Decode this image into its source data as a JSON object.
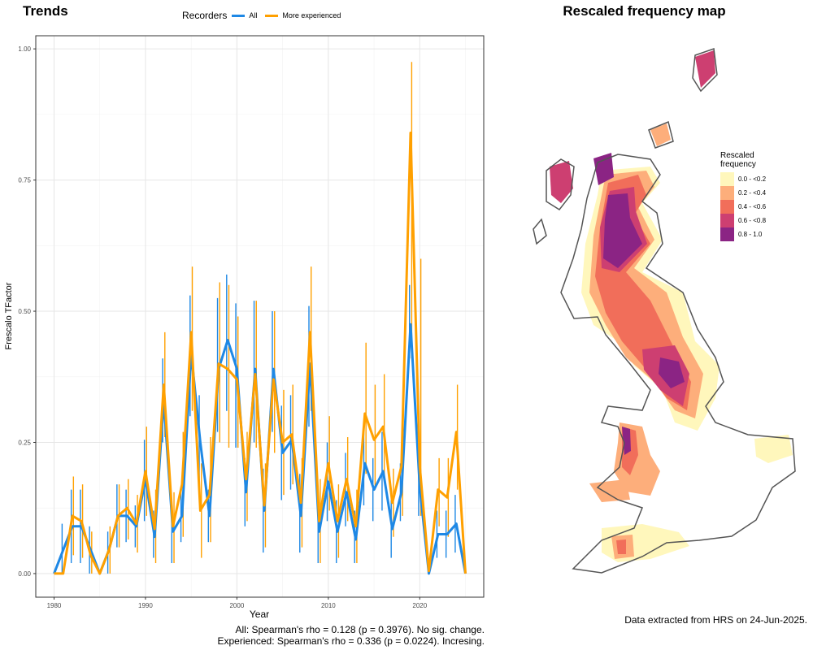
{
  "left_title": "Trends",
  "right_title": "Rescaled frequency map",
  "legend": {
    "title": "Recorders",
    "items": [
      {
        "label": "All",
        "color": "#1e88e5"
      },
      {
        "label": "More experienced",
        "color": "#ffa000"
      }
    ]
  },
  "caption": {
    "line1": "All: Spearman's rho = 0.128 (p = 0.3976). No sig. change.",
    "line2": "Experienced: Spearman's rho = 0.336 (p = 0.0224). Incresing."
  },
  "footnote": "Data extracted from HRS on 24-Jun-2025.",
  "map_legend": {
    "title_line1": "Rescaled",
    "title_line2": "frequency",
    "classes": [
      {
        "label": "0.0 - <0.2",
        "color": "#fff7bc"
      },
      {
        "label": "0.2 - <0.4",
        "color": "#fdae7b"
      },
      {
        "label": "0.4 - <0.6",
        "color": "#f16e5a"
      },
      {
        "label": "0.6 - <0.8",
        "color": "#cd3f71"
      },
      {
        "label": "0.8 - 1.0",
        "color": "#8b2484"
      }
    ]
  },
  "chart_data": {
    "type": "line",
    "xlabel": "Year",
    "ylabel": "Frescalo TFactor",
    "xlim": [
      1978,
      2027
    ],
    "ylim": [
      -0.045,
      1.025
    ],
    "xticks": [
      1980,
      1990,
      2000,
      2010,
      2020
    ],
    "yticks": [
      0.0,
      0.25,
      0.5,
      0.75,
      1.0
    ],
    "ytick_labels": [
      "0.00",
      "0.25",
      "0.50",
      "0.75",
      "1.00"
    ],
    "grid": true,
    "x": [
      1980,
      1981,
      1982,
      1983,
      1984,
      1985,
      1986,
      1987,
      1988,
      1989,
      1990,
      1991,
      1992,
      1993,
      1994,
      1995,
      1996,
      1997,
      1998,
      1999,
      2000,
      2001,
      2002,
      2003,
      2004,
      2005,
      2006,
      2007,
      2008,
      2009,
      2010,
      2011,
      2012,
      2013,
      2014,
      2015,
      2016,
      2017,
      2018,
      2019,
      2020,
      2021,
      2022,
      2023,
      2024,
      2025
    ],
    "series": [
      {
        "name": "All",
        "color": "#1e88e5",
        "values": [
          0.0,
          0.045,
          0.09,
          0.09,
          0.045,
          0.0,
          0.045,
          0.11,
          0.11,
          0.09,
          0.18,
          0.07,
          0.33,
          0.08,
          0.11,
          0.42,
          0.25,
          0.11,
          0.39,
          0.445,
          0.39,
          0.155,
          0.39,
          0.12,
          0.39,
          0.23,
          0.255,
          0.11,
          0.4,
          0.08,
          0.175,
          0.08,
          0.155,
          0.065,
          0.21,
          0.16,
          0.195,
          0.085,
          0.155,
          0.475,
          0.165,
          0.0,
          0.075,
          0.075,
          0.095,
          0.0
        ],
        "err_low": [
          0.0,
          0.0,
          0.02,
          0.02,
          0.0,
          0.0,
          0.0,
          0.05,
          0.06,
          0.05,
          0.1,
          0.03,
          0.25,
          0.02,
          0.06,
          0.3,
          0.17,
          0.06,
          0.27,
          0.31,
          0.24,
          0.09,
          0.25,
          0.04,
          0.27,
          0.14,
          0.16,
          0.04,
          0.28,
          0.02,
          0.1,
          0.02,
          0.09,
          0.02,
          0.13,
          0.1,
          0.12,
          0.03,
          0.1,
          0.41,
          0.11,
          0.0,
          0.03,
          0.03,
          0.04,
          0.0
        ],
        "err_high": [
          0.0,
          0.095,
          0.16,
          0.16,
          0.09,
          0.0,
          0.08,
          0.17,
          0.16,
          0.13,
          0.255,
          0.12,
          0.41,
          0.13,
          0.16,
          0.53,
          0.34,
          0.16,
          0.525,
          0.57,
          0.515,
          0.22,
          0.52,
          0.2,
          0.5,
          0.32,
          0.34,
          0.19,
          0.51,
          0.15,
          0.25,
          0.14,
          0.23,
          0.12,
          0.28,
          0.22,
          0.27,
          0.14,
          0.21,
          0.55,
          0.23,
          0.0,
          0.12,
          0.12,
          0.15,
          0.0
        ]
      },
      {
        "name": "More experienced",
        "color": "#ffa000",
        "values": [
          0.0,
          0.0,
          0.11,
          0.1,
          0.035,
          0.0,
          0.045,
          0.11,
          0.125,
          0.095,
          0.195,
          0.085,
          0.36,
          0.09,
          0.17,
          0.46,
          0.12,
          0.15,
          0.4,
          0.39,
          0.37,
          0.18,
          0.38,
          0.13,
          0.37,
          0.25,
          0.265,
          0.135,
          0.46,
          0.1,
          0.21,
          0.1,
          0.18,
          0.09,
          0.305,
          0.255,
          0.28,
          0.135,
          0.205,
          0.84,
          0.205,
          0.005,
          0.16,
          0.145,
          0.27,
          0.0
        ],
        "err_low": [
          0.0,
          0.0,
          0.035,
          0.03,
          0.0,
          0.0,
          0.0,
          0.05,
          0.065,
          0.04,
          0.11,
          0.02,
          0.26,
          0.02,
          0.07,
          0.31,
          0.03,
          0.06,
          0.25,
          0.24,
          0.24,
          0.1,
          0.24,
          0.05,
          0.23,
          0.15,
          0.17,
          0.05,
          0.31,
          0.02,
          0.12,
          0.03,
          0.1,
          0.02,
          0.19,
          0.16,
          0.18,
          0.07,
          0.11,
          0.41,
          0.11,
          0.0,
          0.09,
          0.07,
          0.16,
          0.0
        ],
        "err_high": [
          0.0,
          0.0,
          0.185,
          0.17,
          0.08,
          0.0,
          0.09,
          0.17,
          0.18,
          0.15,
          0.28,
          0.16,
          0.46,
          0.155,
          0.27,
          0.585,
          0.21,
          0.26,
          0.555,
          0.55,
          0.49,
          0.27,
          0.52,
          0.21,
          0.5,
          0.35,
          0.36,
          0.22,
          0.585,
          0.18,
          0.3,
          0.17,
          0.26,
          0.16,
          0.44,
          0.36,
          0.38,
          0.2,
          0.3,
          0.975,
          0.6,
          0.0,
          0.22,
          0.22,
          0.36,
          0.0
        ]
      }
    ]
  }
}
